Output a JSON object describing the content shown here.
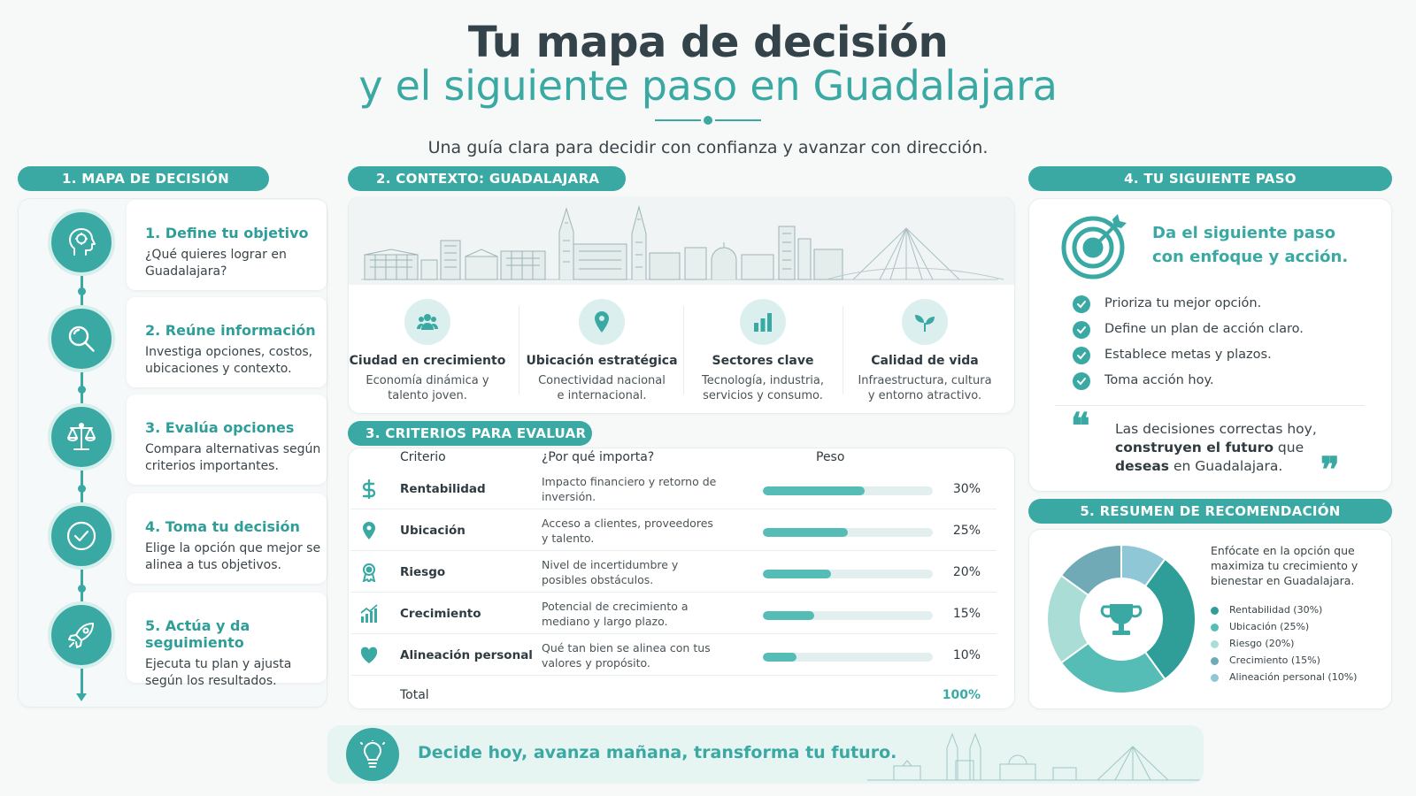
{
  "header": {
    "title_line1": "Tu mapa de decisión",
    "title_line2": "y el siguiente paso en Guadalajara",
    "subtitle": "Una guía clara para decidir con confianza y avanzar con dirección."
  },
  "section1": {
    "label": "1. MAPA DE DECISIÓN",
    "steps": [
      {
        "title": "1. Define tu objetivo",
        "desc": "¿Qué quieres lograr en Guadalajara?",
        "icon": "head-brain-icon"
      },
      {
        "title": "2. Reúne información",
        "desc": "Investiga opciones, costos, ubicaciones y contexto.",
        "icon": "magnifier-icon"
      },
      {
        "title": "3. Evalúa opciones",
        "desc": "Compara alternativas según criterios importantes.",
        "icon": "scale-icon"
      },
      {
        "title": "4. Toma tu decisión",
        "desc": "Elige la opción que mejor se alinea a tus objetivos.",
        "icon": "check-circle-icon"
      },
      {
        "title": "5. Actúa y da seguimiento",
        "desc": "Ejecuta tu plan y ajusta según los resultados.",
        "icon": "rocket-icon"
      }
    ]
  },
  "section2": {
    "label": "2. CONTEXTO: GUADALAJARA",
    "items": [
      {
        "title": "Ciudad en crecimiento",
        "desc": "Economía dinámica y talento joven.",
        "icon": "people-icon"
      },
      {
        "title": "Ubicación estratégica",
        "desc": "Conectividad nacional e internacional.",
        "icon": "location-pin-icon"
      },
      {
        "title": "Sectores clave",
        "desc": "Tecnología, industria, servicios y consumo.",
        "icon": "bar-chart-icon"
      },
      {
        "title": "Calidad de vida",
        "desc": "Infraestructura, cultura y entorno atractivo.",
        "icon": "sprout-icon"
      }
    ]
  },
  "section3": {
    "label": "3. CRITERIOS PARA EVALUAR",
    "headers": {
      "criterion": "Criterio",
      "why": "¿Por qué importa?",
      "weight": "Peso"
    },
    "rows": [
      {
        "name": "Rentabilidad",
        "why": "Impacto financiero y retorno de inversión.",
        "weight": 30,
        "weight_label": "30%",
        "icon": "dollar-icon"
      },
      {
        "name": "Ubicación",
        "why": "Acceso a clientes, proveedores y talento.",
        "weight": 25,
        "weight_label": "25%",
        "icon": "location-pin-icon"
      },
      {
        "name": "Riesgo",
        "why": "Nivel de incertidumbre y posibles obstáculos.",
        "weight": 20,
        "weight_label": "20%",
        "icon": "award-icon"
      },
      {
        "name": "Crecimiento",
        "why": "Potencial de crecimiento a mediano y largo plazo.",
        "weight": 15,
        "weight_label": "15%",
        "icon": "growth-chart-icon"
      },
      {
        "name": "Alineación personal",
        "why": "Qué tan bien se alinea con tus valores y propósito.",
        "weight": 10,
        "weight_label": "10%",
        "icon": "heart-icon"
      }
    ],
    "total_label": "Total",
    "total_value": "100%"
  },
  "section4": {
    "label": "4. TU SIGUIENTE PASO",
    "headline": "Da el siguiente paso con enfoque y acción.",
    "checklist": [
      "Prioriza tu mejor opción.",
      "Define un plan de acción claro.",
      "Establece metas y plazos.",
      "Toma acción hoy."
    ],
    "quote": {
      "part1": "Las decisiones correctas hoy, ",
      "bold1": "construyen el futuro",
      "part2": " que ",
      "bold2": "deseas",
      "part3": " en Guadalajara."
    }
  },
  "section5": {
    "label": "5. RESUMEN DE RECOMENDACIÓN",
    "text": "Enfócate en la opción que maximiza tu crecimiento y bienestar en Guadalajara.",
    "legend": [
      {
        "label": "Rentabilidad (30%)",
        "value": 30,
        "color": "#2f9e98"
      },
      {
        "label": "Ubicación (25%)",
        "value": 25,
        "color": "#56bdb6"
      },
      {
        "label": "Riesgo (20%)",
        "value": 20,
        "color": "#a9ddd6"
      },
      {
        "label": "Crecimiento (15%)",
        "value": 15,
        "color": "#6faab6"
      },
      {
        "label": "Alineación personal (10%)",
        "value": 10,
        "color": "#8fc7d6"
      }
    ]
  },
  "footer": {
    "text": "Decide hoy, avanza mañana, transforma tu futuro."
  },
  "colors": {
    "accent": "#3aa9a3",
    "title": "#34424a"
  }
}
